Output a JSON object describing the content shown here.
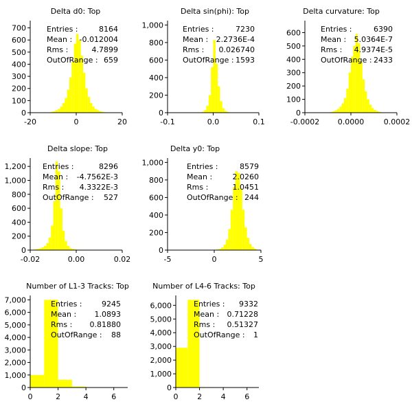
{
  "chart_data": [
    {
      "type": "bar",
      "title": "Delta d0: Top",
      "xlim": [
        -20,
        20
      ],
      "ylim": [
        0,
        760
      ],
      "x_ticks": [
        -20,
        0,
        20
      ],
      "x_tick_labels": [
        "-20",
        "0",
        "20"
      ],
      "y_ticks": [
        0,
        100,
        200,
        300,
        400,
        500,
        600,
        700
      ],
      "y_tick_labels": [
        "0",
        "100",
        "200",
        "300",
        "400",
        "500",
        "600",
        "700"
      ],
      "stats": [
        {
          "label": "Entries :",
          "value": "8164"
        },
        {
          "label": "Mean :",
          "value": "-0.012004"
        },
        {
          "label": "Rms :",
          "value": "4.7899"
        },
        {
          "label": "OutOfRange :",
          "value": "659"
        }
      ],
      "bins": {
        "low": -20,
        "width": 1
      },
      "values": [
        0,
        0,
        0,
        0,
        0,
        0,
        0,
        0,
        3,
        7,
        12,
        20,
        30,
        50,
        80,
        120,
        190,
        290,
        420,
        570,
        650,
        600,
        470,
        330,
        200,
        130,
        80,
        50,
        30,
        20,
        12,
        7,
        4,
        2,
        0,
        0,
        0,
        0,
        0,
        0
      ]
    },
    {
      "type": "bar",
      "title": "Delta sin(phi): Top",
      "xlim": [
        -0.1,
        0.1
      ],
      "ylim": [
        0,
        1050
      ],
      "x_ticks": [
        -0.1,
        0,
        0.1
      ],
      "x_tick_labels": [
        "-0.1",
        "0.0",
        "0.1"
      ],
      "y_ticks": [
        0,
        200,
        400,
        600,
        800,
        1000
      ],
      "y_tick_labels": [
        "0",
        "200",
        "400",
        "600",
        "800",
        "1,000"
      ],
      "stats": [
        {
          "label": "Entries :",
          "value": "7230"
        },
        {
          "label": "Mean :",
          "value": "2.2736E-4"
        },
        {
          "label": "Rms :",
          "value": "0.026740"
        },
        {
          "label": "OutOfRange :",
          "value": "1593"
        }
      ],
      "bins": {
        "low": -0.1,
        "width": 0.005
      },
      "values": [
        0,
        0,
        0,
        0,
        0,
        0,
        0,
        0,
        0,
        0,
        0,
        0,
        0,
        0,
        3,
        10,
        30,
        80,
        200,
        520,
        830,
        560,
        300,
        130,
        50,
        20,
        8,
        4,
        2,
        0,
        0,
        0,
        0,
        0,
        0,
        0,
        0,
        0,
        0,
        0
      ]
    },
    {
      "type": "bar",
      "title": "Delta curvature: Top",
      "xlim": [
        -0.0002,
        0.0002
      ],
      "ylim": [
        0,
        690
      ],
      "x_ticks": [
        -0.0002,
        0,
        0.0002
      ],
      "x_tick_labels": [
        "-0.0002",
        "0.0000",
        "0.0002"
      ],
      "y_ticks": [
        0,
        100,
        200,
        300,
        400,
        500,
        600
      ],
      "y_tick_labels": [
        "0",
        "100",
        "200",
        "300",
        "400",
        "500",
        "600"
      ],
      "stats": [
        {
          "label": "Entries :",
          "value": "6390"
        },
        {
          "label": "Mean :",
          "value": "5.0364E-7"
        },
        {
          "label": "Rms :",
          "value": "4.9374E-5"
        },
        {
          "label": "OutOfRange :",
          "value": "2433"
        }
      ],
      "bins": {
        "low": -0.0002,
        "width": 1e-05
      },
      "values": [
        0,
        0,
        0,
        0,
        0,
        0,
        0,
        0,
        0,
        0,
        2,
        5,
        10,
        18,
        28,
        45,
        70,
        110,
        180,
        300,
        420,
        500,
        590,
        520,
        380,
        250,
        160,
        100,
        60,
        35,
        20,
        12,
        6,
        3,
        1,
        0,
        0,
        0,
        0,
        0
      ]
    },
    {
      "type": "bar",
      "title": "Delta slope: Top",
      "xlim": [
        -0.02,
        0.02
      ],
      "ylim": [
        0,
        1320
      ],
      "x_ticks": [
        -0.02,
        0,
        0.02
      ],
      "x_tick_labels": [
        "-0.02",
        "0.00",
        "0.02"
      ],
      "y_ticks": [
        0,
        200,
        400,
        600,
        800,
        1000,
        1200
      ],
      "y_tick_labels": [
        "0",
        "200",
        "400",
        "600",
        "800",
        "1,000",
        "1,200"
      ],
      "stats": [
        {
          "label": "Entries :",
          "value": "8296"
        },
        {
          "label": "Mean :",
          "value": "-4.7562E-3"
        },
        {
          "label": "Rms :",
          "value": "4.3322E-3"
        },
        {
          "label": "OutOfRange :",
          "value": "527"
        }
      ],
      "bins": {
        "low": -0.02,
        "width": 0.001
      },
      "values": [
        5,
        8,
        12,
        18,
        26,
        40,
        60,
        100,
        180,
        350,
        700,
        1270,
        1130,
        600,
        280,
        130,
        60,
        30,
        18,
        12,
        8,
        5,
        3,
        2,
        1,
        0,
        0,
        0,
        0,
        0,
        0,
        0,
        0,
        0,
        0,
        0,
        0,
        0,
        0,
        0
      ]
    },
    {
      "type": "bar",
      "title": "Delta y0: Top",
      "xlim": [
        -5,
        5
      ],
      "ylim": [
        0,
        1050
      ],
      "x_ticks": [
        -5,
        0,
        5
      ],
      "x_tick_labels": [
        "-5",
        "0",
        "5"
      ],
      "y_ticks": [
        0,
        200,
        400,
        600,
        800,
        1000
      ],
      "y_tick_labels": [
        "0",
        "200",
        "400",
        "600",
        "800",
        "1,000"
      ],
      "stats": [
        {
          "label": "Entries :",
          "value": "8579"
        },
        {
          "label": "Mean :",
          "value": "2.0260"
        },
        {
          "label": "Rms :",
          "value": "1.0451"
        },
        {
          "label": "OutOfRange :",
          "value": "244"
        }
      ],
      "bins": {
        "low": -5,
        "width": 0.25
      },
      "values": [
        0,
        0,
        0,
        0,
        0,
        0,
        0,
        0,
        0,
        0,
        0,
        0,
        0,
        0,
        0,
        0,
        0,
        0,
        1,
        2,
        4,
        8,
        15,
        30,
        60,
        120,
        240,
        460,
        720,
        900,
        880,
        700,
        460,
        260,
        140,
        70,
        35,
        15,
        6,
        2
      ]
    },
    {
      "type": "bar",
      "title": "Number of L1-3 Tracks: Top",
      "xlim": [
        0,
        7
      ],
      "ylim": [
        0,
        7350
      ],
      "x_ticks": [
        0,
        2,
        4,
        6
      ],
      "x_tick_labels": [
        "0",
        "2",
        "4",
        "6"
      ],
      "y_ticks": [
        0,
        1000,
        2000,
        3000,
        4000,
        5000,
        6000,
        7000
      ],
      "y_tick_labels": [
        "0",
        "1,000",
        "2,000",
        "3,000",
        "4,000",
        "5,000",
        "6,000",
        "7,000"
      ],
      "stats": [
        {
          "label": "Entries :",
          "value": "9245"
        },
        {
          "label": "Mean :",
          "value": "1.0893"
        },
        {
          "label": "Rms :",
          "value": "0.81880"
        },
        {
          "label": "OutOfRange :",
          "value": "88"
        }
      ],
      "bins": {
        "low": 0,
        "width": 1
      },
      "values": [
        1000,
        7000,
        620,
        80,
        20,
        10,
        5
      ]
    },
    {
      "type": "bar",
      "title": "Number of L4-6 Tracks: Top",
      "xlim": [
        0,
        7
      ],
      "ylim": [
        0,
        6720
      ],
      "x_ticks": [
        0,
        2,
        4,
        6
      ],
      "x_tick_labels": [
        "0",
        "2",
        "4",
        "6"
      ],
      "y_ticks": [
        0,
        1000,
        2000,
        3000,
        4000,
        5000,
        6000
      ],
      "y_tick_labels": [
        "0",
        "1,000",
        "2,000",
        "3,000",
        "4,000",
        "5,000",
        "6,000"
      ],
      "stats": [
        {
          "label": "Entries :",
          "value": "9332"
        },
        {
          "label": "Mean :",
          "value": "0.71228"
        },
        {
          "label": "Rms :",
          "value": "0.51327"
        },
        {
          "label": "OutOfRange :",
          "value": "1"
        }
      ],
      "bins": {
        "low": 0,
        "width": 1
      },
      "values": [
        2900,
        6400,
        30,
        2,
        0,
        0,
        0
      ]
    }
  ],
  "style": {
    "bar_color": "#ffff00",
    "axis_color": "#000000",
    "text_color": "#000000",
    "background": "#ffffff"
  }
}
